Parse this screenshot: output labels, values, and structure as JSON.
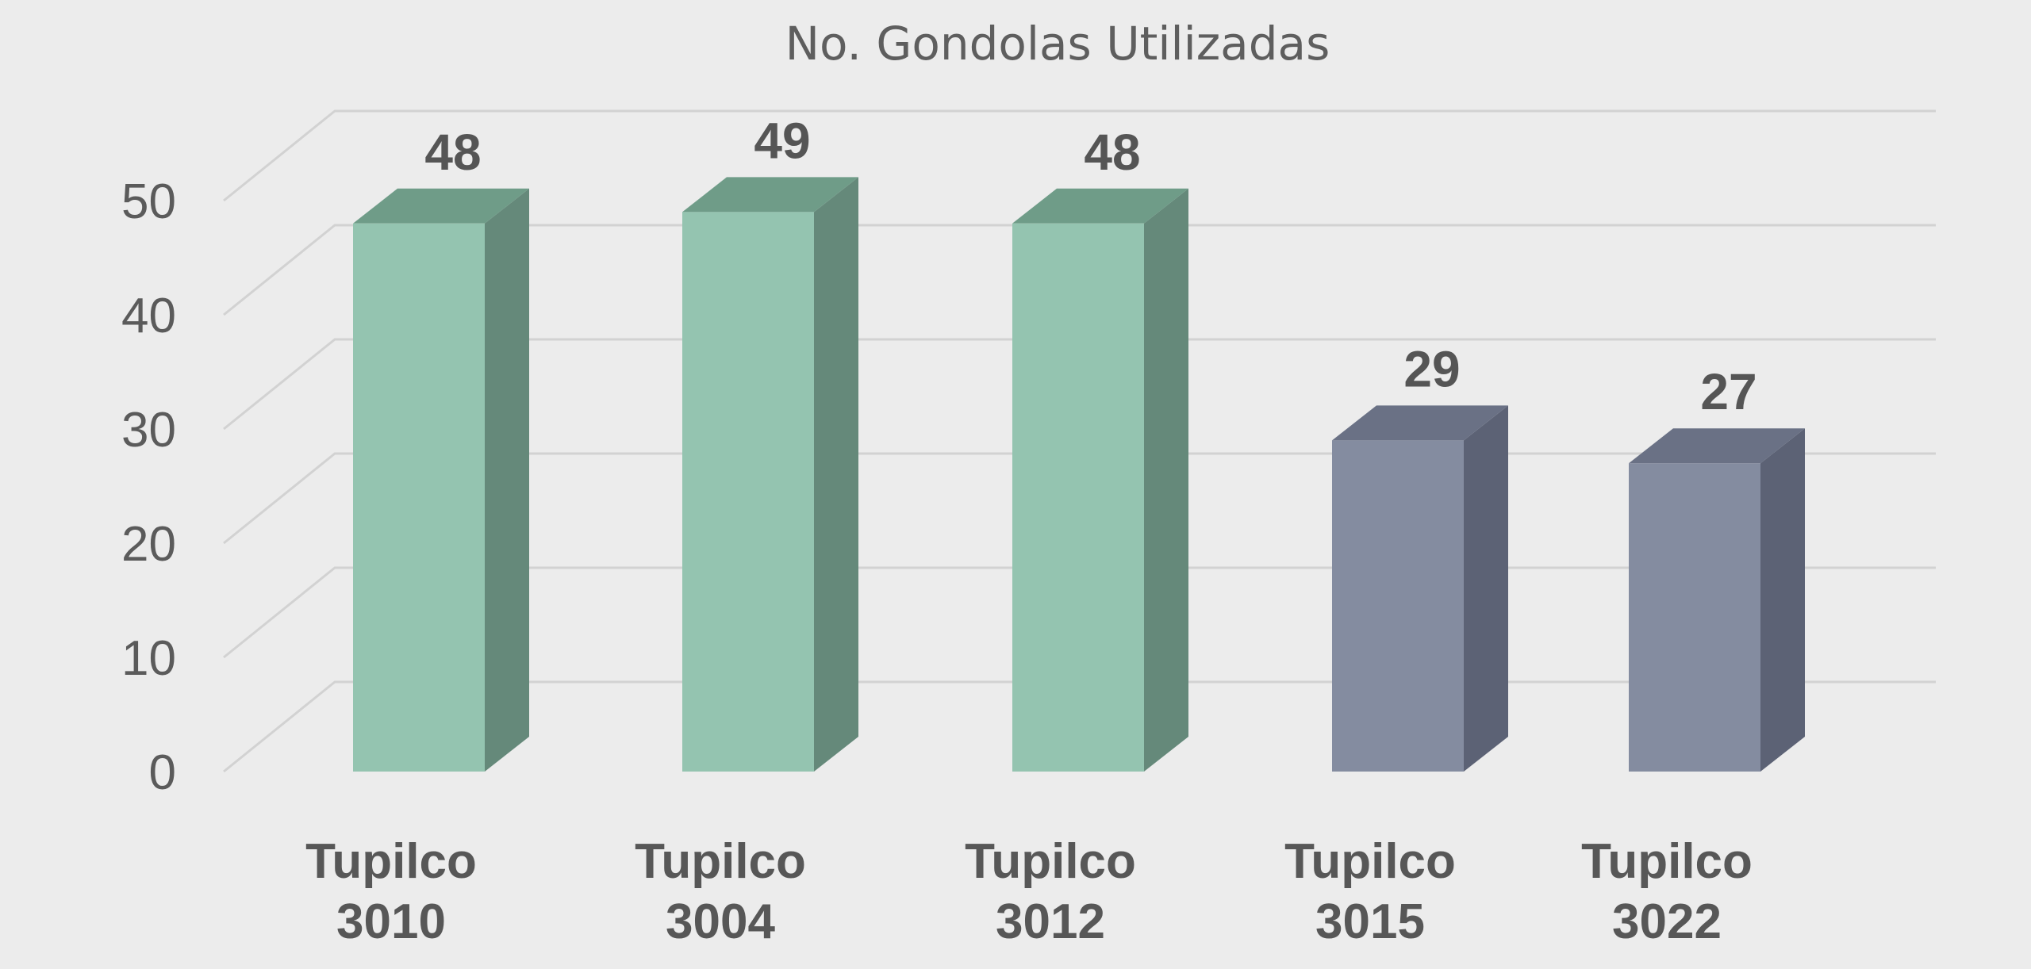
{
  "chart_data": {
    "type": "bar",
    "title": "No. Gondolas Utilizadas",
    "categories": [
      [
        "Tupilco",
        "3010"
      ],
      [
        "Tupilco",
        "3004"
      ],
      [
        "Tupilco",
        "3012"
      ],
      [
        "Tupilco",
        "3015"
      ],
      [
        "Tupilco",
        "3022"
      ]
    ],
    "values": [
      48,
      49,
      48,
      29,
      27
    ],
    "bar_colors": [
      "#94c4b0",
      "#94c4b0",
      "#94c4b0",
      "#848ca0",
      "#848ca0"
    ],
    "side_colors": [
      "#65897a",
      "#65897a",
      "#65897a",
      "#5c6275",
      "#5c6275"
    ],
    "top_colors": [
      "#6f9c88",
      "#6f9c88",
      "#6f9c88",
      "#6a7185",
      "#6a7185"
    ],
    "ylim": [
      0,
      50
    ],
    "yticks": [
      0,
      10,
      20,
      30,
      40,
      50
    ],
    "grid": true,
    "legend": "none",
    "style": "3d-column"
  }
}
